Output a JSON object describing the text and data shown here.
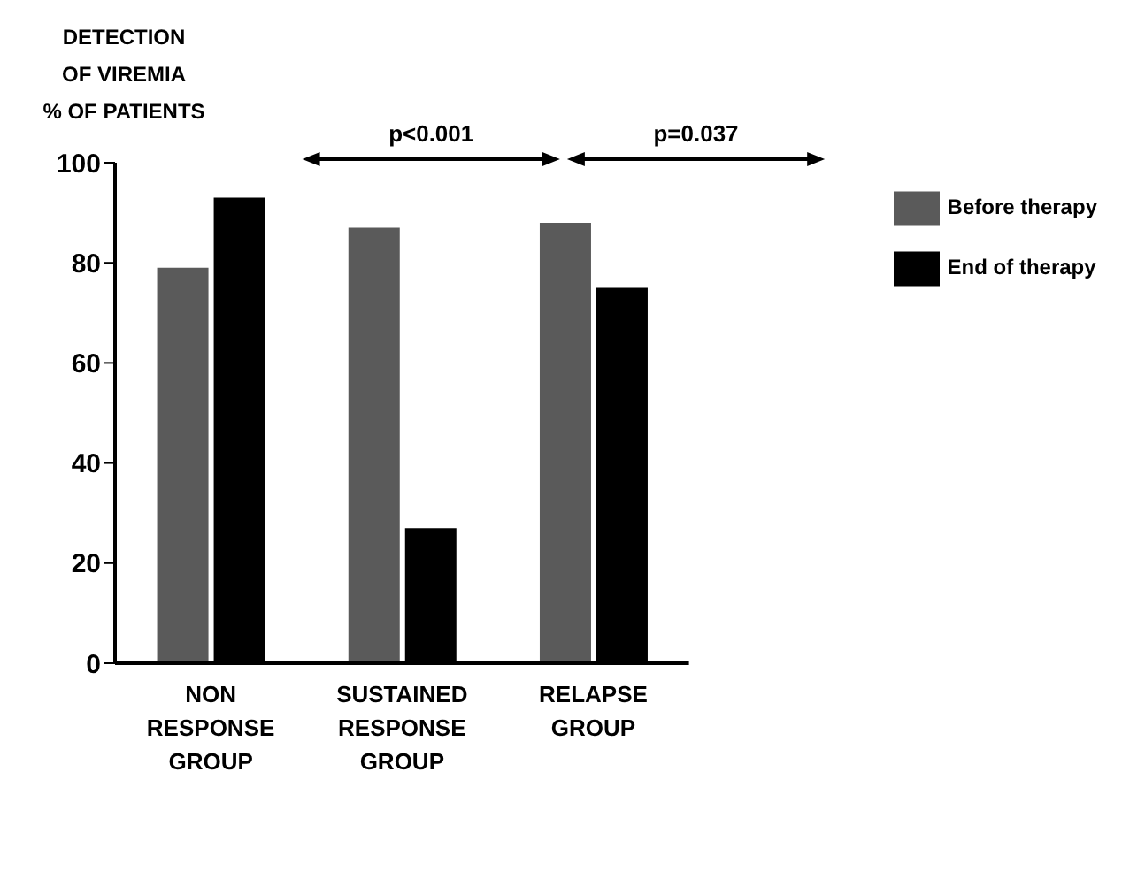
{
  "chart_data": {
    "type": "bar",
    "ylabel": "DETECTION\nOF VIREMIA\n% OF PATIENTS",
    "categories": [
      "NON\nRESPONSE\nGROUP",
      "SUSTAINED\nRESPONSE\nGROUP",
      "RELAPSE\nGROUP"
    ],
    "series": [
      {
        "name": "Before therapy",
        "color": "#5a5a5a",
        "values": [
          79,
          87,
          88
        ]
      },
      {
        "name": "End of therapy",
        "color": "#000000",
        "values": [
          93,
          27,
          75
        ]
      }
    ],
    "ylim": [
      0,
      100
    ],
    "yticks": [
      0,
      20,
      40,
      60,
      80,
      100
    ],
    "grid": false,
    "legend": "top right",
    "annotations": [
      "p<0.001",
      "p=0.037"
    ]
  }
}
